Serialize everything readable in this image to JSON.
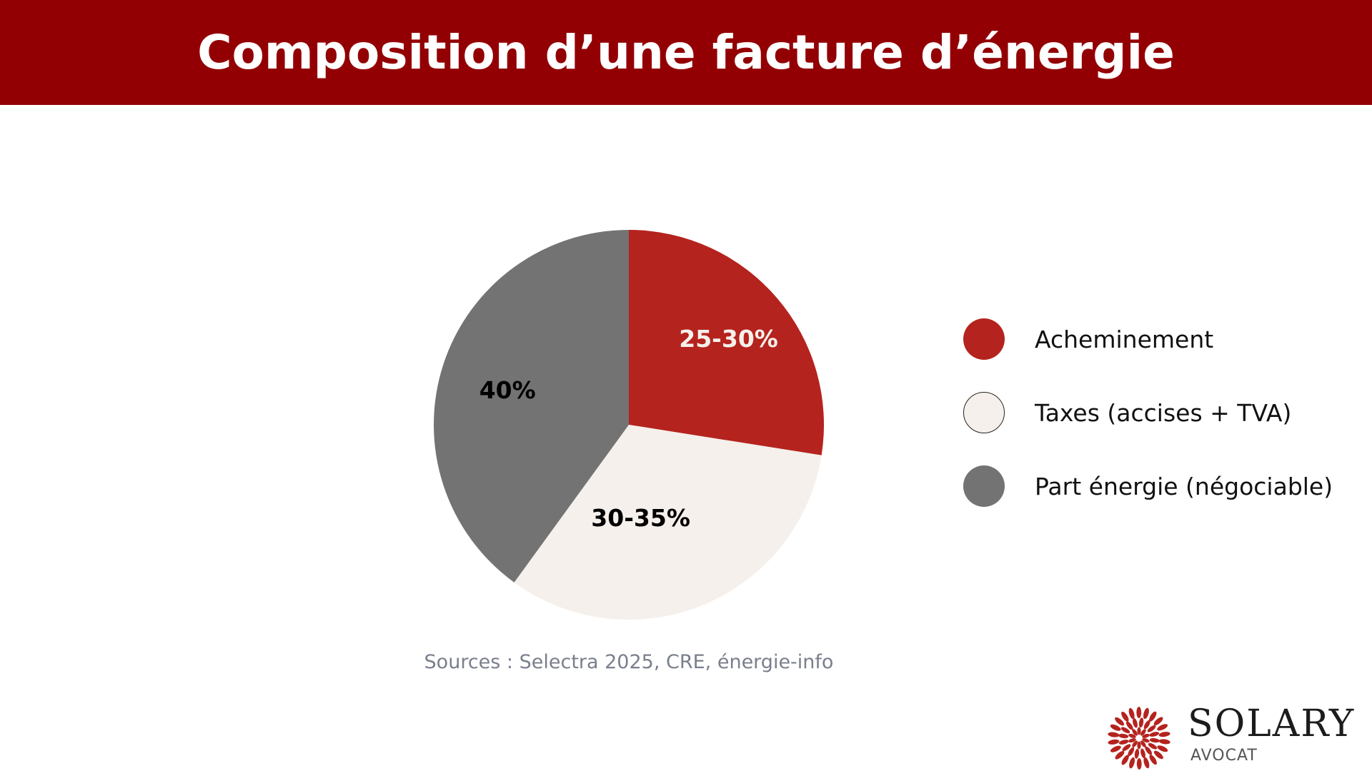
{
  "header": {
    "title": "Composition d’une facture d’énergie"
  },
  "chart_data": {
    "type": "pie",
    "categories": [
      "Acheminement",
      "Taxes (accises + TVA)",
      "Part énergie (négociable)"
    ],
    "values": [
      27.5,
      32.5,
      40
    ],
    "slice_labels": [
      "25-30%",
      "30-35%",
      "40%"
    ],
    "colors": [
      "#b5231e",
      "#f5f0eb",
      "#737373"
    ],
    "label_colors": [
      "#f5f0eb",
      "#000000",
      "#000000"
    ],
    "start_angle_deg": 0,
    "direction": "clockwise",
    "legend_position": "right"
  },
  "legend": {
    "items": [
      {
        "label": "Acheminement",
        "color": "#b5231e"
      },
      {
        "label": "Taxes (accises + TVA)",
        "color": "#f5f0eb"
      },
      {
        "label": "Part énergie (négociable)",
        "color": "#737373"
      }
    ]
  },
  "footer": {
    "sources": "Sources : Selectra 2025, CRE, énergie-info"
  },
  "logo": {
    "name": "SOLARY",
    "subtitle": "AVOCAT",
    "color": "#b5231e"
  }
}
